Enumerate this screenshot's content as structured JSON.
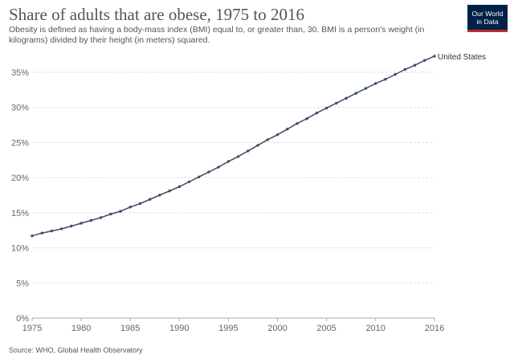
{
  "header": {
    "title": "Share of adults that are obese, 1975 to 2016",
    "subtitle": "Obesity is defined as having a body-mass index (BMI) equal to, or greater than, 30. BMI is a person's weight (in kilograms) divided by their height (in meters) squared."
  },
  "logo": {
    "line1": "Our World",
    "line2": "in Data",
    "bg_color": "#002147",
    "accent_color": "#bc2b33"
  },
  "footer": {
    "source": "Source: WHO, Global Health Observatory"
  },
  "chart_data": {
    "type": "line",
    "title": "Share of adults that are obese, 1975 to 2016",
    "xlabel": "",
    "ylabel": "",
    "xlim": [
      1975,
      2016
    ],
    "ylim": [
      0,
      35
    ],
    "grid": "horizontal dashed",
    "x_ticks": [
      "1975",
      "1980",
      "1985",
      "1990",
      "1995",
      "2000",
      "2005",
      "2010",
      "2016"
    ],
    "y_ticks": [
      "0%",
      "5%",
      "10%",
      "15%",
      "20%",
      "25%",
      "30%",
      "35%"
    ],
    "line_color": "#3c4e66",
    "series": [
      {
        "name": "United States",
        "x": [
          1975,
          1976,
          1977,
          1978,
          1979,
          1980,
          1981,
          1982,
          1983,
          1984,
          1985,
          1986,
          1987,
          1988,
          1989,
          1990,
          1991,
          1992,
          1993,
          1994,
          1995,
          1996,
          1997,
          1998,
          1999,
          2000,
          2001,
          2002,
          2003,
          2004,
          2005,
          2006,
          2007,
          2008,
          2009,
          2010,
          2011,
          2012,
          2013,
          2014,
          2015,
          2016
        ],
        "values": [
          11.7,
          12.1,
          12.4,
          12.7,
          13.1,
          13.5,
          13.9,
          14.3,
          14.8,
          15.2,
          15.8,
          16.3,
          16.9,
          17.5,
          18.1,
          18.7,
          19.4,
          20.1,
          20.8,
          21.5,
          22.3,
          23.0,
          23.8,
          24.6,
          25.4,
          26.1,
          26.9,
          27.7,
          28.4,
          29.2,
          29.9,
          30.6,
          31.3,
          32.0,
          32.7,
          33.4,
          34.0,
          34.7,
          35.4,
          36.0,
          36.7,
          37.3
        ]
      }
    ]
  }
}
